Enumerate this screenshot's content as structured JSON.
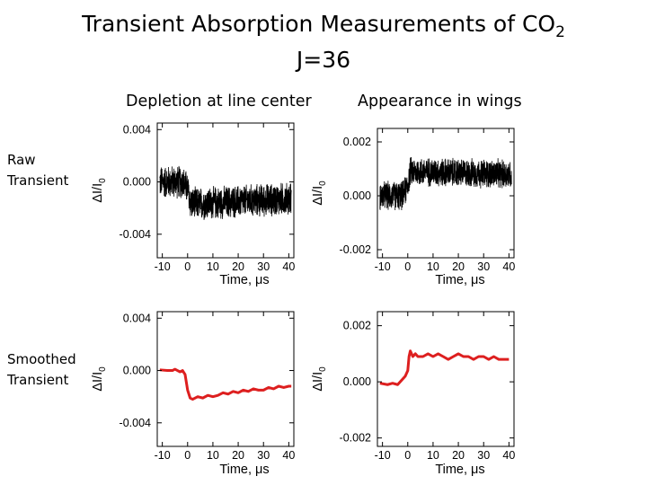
{
  "slide": {
    "title_main": "Transient Absorption Measurements of CO",
    "title_sub": "2",
    "title_line2": "J=36",
    "col_left": "Depletion at line center",
    "col_right": "Appearance in wings",
    "row_top_1": "Raw",
    "row_top_2": "Transient",
    "row_bot_1": "Smoothed",
    "row_bot_2": "Transient"
  },
  "colors": {
    "raw": "#000000",
    "smoothed": "#dd1f1f",
    "frame": "#000000"
  },
  "chart_data": [
    {
      "id": "raw-depletion",
      "type": "line",
      "style": "raw-noisy",
      "xlabel": "Time, μs",
      "ylabel": "ΔI/I0",
      "xlim": [
        -12,
        42
      ],
      "ylim": [
        -0.0058,
        0.0045
      ],
      "xticks": [
        "-10",
        "0",
        "10",
        "20",
        "30",
        "40"
      ],
      "xtick_values": [
        -10,
        0,
        10,
        20,
        30,
        40
      ],
      "yticks": [
        "0.004",
        "0.000",
        "-0.004"
      ],
      "ytick_values": [
        0.004,
        0.0,
        -0.004
      ],
      "series": [
        {
          "x": [
            -10,
            -2,
            0,
            1,
            2,
            40
          ],
          "y": [
            0.0,
            0.0,
            -0.0005,
            -0.0015,
            -0.0017,
            -0.0013
          ],
          "noise_amplitude": 0.0014
        }
      ]
    },
    {
      "id": "raw-appearance",
      "type": "line",
      "style": "raw-noisy",
      "xlabel": "Time, μs",
      "ylabel": "ΔI/I0",
      "xlim": [
        -12,
        42
      ],
      "ylim": [
        -0.0023,
        0.0025
      ],
      "xticks": [
        "-10",
        "0",
        "10",
        "20",
        "30",
        "40"
      ],
      "xtick_values": [
        -10,
        0,
        10,
        20,
        30,
        40
      ],
      "yticks": [
        "0.002",
        "0.000",
        "-0.002"
      ],
      "ytick_values": [
        0.002,
        0.0,
        -0.002
      ],
      "series": [
        {
          "x": [
            -10,
            -2,
            0,
            1,
            2,
            40
          ],
          "y": [
            0.0,
            0.0,
            0.0004,
            0.0009,
            0.0009,
            0.0008
          ],
          "noise_amplitude": 0.0006
        }
      ]
    },
    {
      "id": "smoothed-depletion",
      "type": "line",
      "style": "smoothed",
      "xlabel": "Time, μs",
      "ylabel": "ΔI/I0",
      "xlim": [
        -12,
        42
      ],
      "ylim": [
        -0.0058,
        0.0045
      ],
      "xticks": [
        "-10",
        "0",
        "10",
        "20",
        "30",
        "40"
      ],
      "xtick_values": [
        -10,
        0,
        10,
        20,
        30,
        40
      ],
      "yticks": [
        "0.004",
        "0.000",
        "-0.004"
      ],
      "ytick_values": [
        0.004,
        0.0,
        -0.004
      ],
      "series": [
        {
          "x": [
            -11,
            -8,
            -6,
            -5,
            -4,
            -3,
            -2,
            -1,
            0,
            1,
            2,
            4,
            6,
            8,
            10,
            12,
            14,
            16,
            18,
            20,
            22,
            24,
            26,
            28,
            30,
            32,
            34,
            36,
            38,
            40,
            41
          ],
          "y": [
            5e-05,
            0.0,
            0.0,
            0.0001,
            0.0,
            -0.0001,
            0.0,
            -0.0003,
            -0.0015,
            -0.0021,
            -0.0022,
            -0.002,
            -0.0021,
            -0.0019,
            -0.002,
            -0.0019,
            -0.0017,
            -0.0018,
            -0.0016,
            -0.0017,
            -0.0015,
            -0.0016,
            -0.0014,
            -0.0015,
            -0.0015,
            -0.0013,
            -0.0014,
            -0.0012,
            -0.0013,
            -0.0012,
            -0.0012
          ]
        }
      ]
    },
    {
      "id": "smoothed-appearance",
      "type": "line",
      "style": "smoothed",
      "xlabel": "Time, μs",
      "ylabel": "ΔI/I0",
      "xlim": [
        -12,
        42
      ],
      "ylim": [
        -0.0023,
        0.0025
      ],
      "xticks": [
        "-10",
        "0",
        "10",
        "20",
        "30",
        "40"
      ],
      "xtick_values": [
        -10,
        0,
        10,
        20,
        30,
        40
      ],
      "yticks": [
        "0.002",
        "0.000",
        "-0.002"
      ],
      "ytick_values": [
        0.002,
        0.0,
        -0.002
      ],
      "series": [
        {
          "x": [
            -11,
            -8,
            -6,
            -4,
            -3,
            -2,
            -1,
            0,
            0.5,
            1,
            2,
            3,
            4,
            6,
            8,
            10,
            12,
            14,
            16,
            18,
            20,
            22,
            24,
            26,
            28,
            30,
            32,
            34,
            36,
            38,
            40
          ],
          "y": [
            -5e-05,
            -0.0001,
            -5e-05,
            -0.0001,
            0.0,
            0.0001,
            0.0002,
            0.0004,
            0.0009,
            0.0011,
            0.0009,
            0.001,
            0.0009,
            0.0009,
            0.001,
            0.0009,
            0.001,
            0.0009,
            0.0008,
            0.0009,
            0.001,
            0.0009,
            0.0009,
            0.0008,
            0.0009,
            0.0009,
            0.0008,
            0.0009,
            0.0008,
            0.0008,
            0.0008
          ]
        }
      ]
    }
  ]
}
